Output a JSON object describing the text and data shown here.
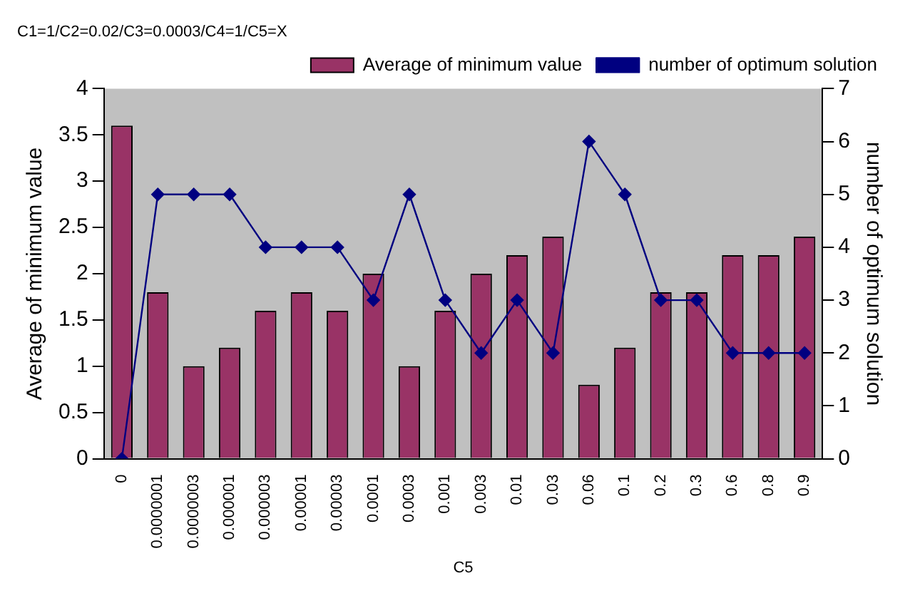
{
  "chart_data": {
    "type": "bar",
    "title": "C1=1/C2=0.02/C3=0.0003/C4=1/C5=X",
    "xlabel": "C5",
    "ylabel": "Average of minimum value",
    "y2label": "number of optimum solution",
    "categories": [
      "0",
      "0.0000001",
      "0.0000003",
      "0.000001",
      "0.000003",
      "0.00001",
      "0.00003",
      "0.0001",
      "0.0003",
      "0.001",
      "0.003",
      "0.01",
      "0.03",
      "0.06",
      "0.1",
      "0.2",
      "0.3",
      "0.6",
      "0.8",
      "0.9"
    ],
    "series": [
      {
        "name": "Average of minimum value",
        "color": "#993366",
        "values": [
          3.6,
          1.8,
          1.0,
          1.2,
          1.6,
          1.8,
          1.6,
          2.0,
          1.0,
          1.6,
          2.0,
          2.2,
          2.4,
          0.8,
          1.2,
          1.8,
          1.8,
          2.2,
          2.2,
          2.4
        ]
      },
      {
        "name": "number of optimum solution",
        "type": "line",
        "axis": "y2",
        "color": "#000080",
        "marker": "diamond",
        "values": [
          0,
          5,
          5,
          5,
          4,
          4,
          4,
          3,
          5,
          3,
          2,
          3,
          2,
          6,
          5,
          3,
          3,
          2,
          2,
          2
        ]
      }
    ],
    "ylim": [
      0,
      4
    ],
    "yticks": [
      0,
      0.5,
      1,
      1.5,
      2,
      2.5,
      3,
      3.5,
      4
    ],
    "y2lim": [
      0,
      7
    ],
    "y2ticks": [
      0,
      1,
      2,
      3,
      4,
      5,
      6,
      7
    ],
    "grid": false,
    "legend": "top right"
  }
}
